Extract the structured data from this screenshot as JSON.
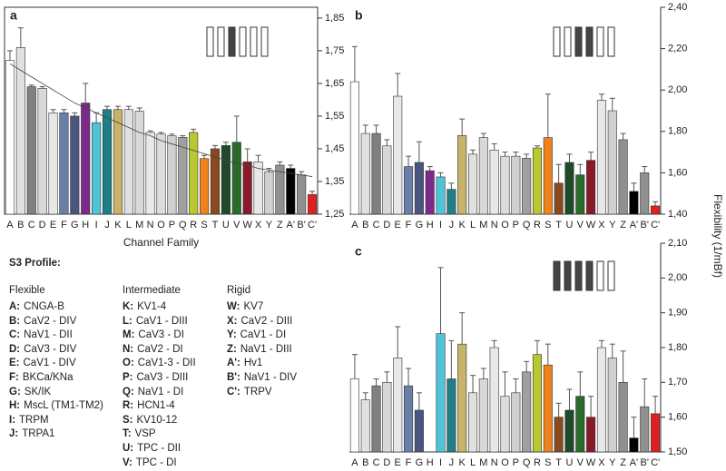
{
  "chart_data": [
    {
      "type": "bar",
      "title": "a",
      "xlabel": "Channel Family",
      "categories": [
        "A",
        "B",
        "C",
        "D",
        "E",
        "F",
        "G",
        "H",
        "I",
        "J",
        "K",
        "L",
        "M",
        "N",
        "O",
        "P",
        "Q",
        "R",
        "S",
        "T",
        "U",
        "V",
        "W",
        "X",
        "Y",
        "Z",
        "A'",
        "B'",
        "C'"
      ],
      "values": [
        1.72,
        1.76,
        1.64,
        1.635,
        1.56,
        1.56,
        1.55,
        1.59,
        1.53,
        1.57,
        1.57,
        1.57,
        1.565,
        1.5,
        1.495,
        1.49,
        1.485,
        1.5,
        1.42,
        1.45,
        1.46,
        1.47,
        1.41,
        1.41,
        1.38,
        1.4,
        1.39,
        1.37,
        1.31
      ],
      "errors": [
        0.03,
        0.06,
        0.005,
        0.005,
        0.01,
        0.01,
        0.01,
        0.06,
        0.03,
        0.01,
        0.01,
        0.01,
        0.01,
        0.005,
        0.005,
        0.005,
        0.005,
        0.01,
        0.01,
        0.01,
        0.01,
        0.08,
        0.04,
        0.02,
        0.01,
        0.01,
        0.01,
        0.01,
        0.01
      ],
      "trend": [
        1.71,
        1.69,
        1.67,
        1.65,
        1.63,
        1.61,
        1.59,
        1.575,
        1.56,
        1.545,
        1.53,
        1.515,
        1.5,
        1.49,
        1.475,
        1.465,
        1.455,
        1.445,
        1.435,
        1.425,
        1.415,
        1.405,
        1.4,
        1.39,
        1.385,
        1.38,
        1.375,
        1.37,
        1.365
      ],
      "colors": [
        "#ffffff",
        "#e0e0e0",
        "#808080",
        "#d8d8d8",
        "#e8e8e8",
        "#6a7fa8",
        "#4a5580",
        "#7b2a8a",
        "#4fc3d8",
        "#1f7f86",
        "#c8b36a",
        "#e0e0e0",
        "#d8d8d8",
        "#e8e8e8",
        "#dcdcdc",
        "#d0d0d0",
        "#a0a0a0",
        "#b8c830",
        "#f0821e",
        "#8a4a1e",
        "#1e4a2a",
        "#2a6a2a",
        "#8a1a2a",
        "#e8e8e8",
        "#d0d0d0",
        "#909090",
        "#000000",
        "#909090",
        "#e02020"
      ],
      "ylim": [
        1.25,
        1.883
      ],
      "yticks": [
        {
          "value": 1.25,
          "label": "1,25"
        },
        {
          "value": 1.35,
          "label": "1,35"
        },
        {
          "value": 1.45,
          "label": "1,45"
        },
        {
          "value": 1.55,
          "label": "1,55"
        },
        {
          "value": 1.65,
          "label": "1,65"
        },
        {
          "value": 1.75,
          "label": "1,75"
        },
        {
          "value": 1.85,
          "label": "1,85"
        }
      ]
    },
    {
      "type": "bar",
      "title": "b",
      "ylabel": "Flexibility (1/mBf)",
      "categories": [
        "A",
        "B",
        "C",
        "D",
        "E",
        "F",
        "G",
        "H",
        "I",
        "J",
        "K",
        "L",
        "M",
        "N",
        "O",
        "P",
        "Q",
        "R",
        "S",
        "T",
        "U",
        "V",
        "W",
        "X",
        "Y",
        "Z",
        "A'",
        "B'",
        "C'"
      ],
      "values": [
        2.04,
        1.79,
        1.79,
        1.73,
        1.97,
        1.63,
        1.65,
        1.61,
        1.58,
        1.52,
        1.78,
        1.69,
        1.77,
        1.71,
        1.68,
        1.68,
        1.67,
        1.72,
        1.77,
        1.55,
        1.65,
        1.59,
        1.66,
        1.95,
        1.9,
        1.76,
        1.51,
        1.6,
        1.44
      ],
      "errors": [
        0.17,
        0.04,
        0.04,
        0.03,
        0.11,
        0.05,
        0.1,
        0.02,
        0.02,
        0.03,
        0.08,
        0.02,
        0.02,
        0.03,
        0.02,
        0.02,
        0.02,
        0.01,
        0.21,
        0.09,
        0.04,
        0.05,
        0.04,
        0.03,
        0.06,
        0.03,
        0.04,
        0.03,
        0.02
      ],
      "colors": [
        "#ffffff",
        "#e0e0e0",
        "#808080",
        "#d8d8d8",
        "#e8e8e8",
        "#6a7fa8",
        "#4a5580",
        "#7b2a8a",
        "#4fc3d8",
        "#1f7f86",
        "#c8b36a",
        "#e0e0e0",
        "#d8d8d8",
        "#e8e8e8",
        "#dcdcdc",
        "#d0d0d0",
        "#a0a0a0",
        "#b8c830",
        "#f0821e",
        "#8a4a1e",
        "#1e4a2a",
        "#2a6a2a",
        "#8a1a2a",
        "#e8e8e8",
        "#d0d0d0",
        "#909090",
        "#000000",
        "#909090",
        "#e02020"
      ],
      "ylim": [
        1.4,
        2.4
      ],
      "yticks": [
        {
          "value": 1.4,
          "label": "1,40"
        },
        {
          "value": 1.6,
          "label": "1,60"
        },
        {
          "value": 1.8,
          "label": "1,80"
        },
        {
          "value": 2.0,
          "label": "2,00"
        },
        {
          "value": 2.2,
          "label": "2,20"
        },
        {
          "value": 2.4,
          "label": "2,40"
        }
      ]
    },
    {
      "type": "bar",
      "title": "c",
      "categories": [
        "A",
        "B",
        "C",
        "D",
        "E",
        "F",
        "G",
        "H",
        "I",
        "J",
        "K",
        "L",
        "M",
        "N",
        "O",
        "P",
        "Q",
        "R",
        "S",
        "T",
        "U",
        "V",
        "W",
        "X",
        "Y",
        "Z",
        "A'",
        "B'",
        "C'"
      ],
      "values": [
        1.71,
        1.65,
        1.69,
        1.7,
        1.77,
        1.69,
        1.62,
        null,
        1.84,
        1.71,
        1.81,
        1.67,
        1.71,
        1.8,
        1.66,
        1.67,
        1.73,
        1.78,
        1.75,
        1.6,
        1.62,
        1.66,
        1.6,
        1.8,
        1.77,
        1.7,
        1.54,
        1.63,
        1.61
      ],
      "errors": [
        0.07,
        0.02,
        0.02,
        0.03,
        0.09,
        0.05,
        0.05,
        null,
        0.19,
        0.11,
        0.09,
        0.05,
        0.03,
        0.02,
        0.07,
        0.04,
        0.03,
        0.04,
        0.06,
        0.04,
        0.06,
        0.07,
        0.06,
        0.02,
        0.04,
        0.09,
        0.06,
        0.08,
        0.05
      ],
      "colors": [
        "#ffffff",
        "#e0e0e0",
        "#808080",
        "#d8d8d8",
        "#e8e8e8",
        "#6a7fa8",
        "#4a5580",
        "#7b2a8a",
        "#4fc3d8",
        "#1f7f86",
        "#c8b36a",
        "#e0e0e0",
        "#d8d8d8",
        "#e8e8e8",
        "#dcdcdc",
        "#d0d0d0",
        "#a0a0a0",
        "#b8c830",
        "#f0821e",
        "#8a4a1e",
        "#1e4a2a",
        "#2a6a2a",
        "#8a1a2a",
        "#e8e8e8",
        "#d0d0d0",
        "#909090",
        "#000000",
        "#909090",
        "#e02020"
      ],
      "ylim": [
        1.5,
        2.1
      ],
      "yticks": [
        {
          "value": 1.5,
          "label": "1,50"
        },
        {
          "value": 1.6,
          "label": "1,60"
        },
        {
          "value": 1.7,
          "label": "1,70"
        },
        {
          "value": 1.8,
          "label": "1,80"
        },
        {
          "value": 1.9,
          "label": "1,90"
        },
        {
          "value": 2.0,
          "label": "2,00"
        },
        {
          "value": 2.1,
          "label": "2,10"
        }
      ]
    }
  ],
  "legend": {
    "title": "S3 Profile:",
    "groups": [
      {
        "name": "Flexible",
        "items": [
          {
            "key": "A:",
            "label": "CNGA-B"
          },
          {
            "key": "B:",
            "label": "CaV2 - DIV"
          },
          {
            "key": "C:",
            "label": "NaV1 - DII"
          },
          {
            "key": "D:",
            "label": "CaV3 - DIV"
          },
          {
            "key": "E:",
            "label": "CaV1 - DIV"
          },
          {
            "key": "F:",
            "label": "BKCa/KNa"
          },
          {
            "key": "G:",
            "label": "SK/IK"
          },
          {
            "key": "H:",
            "label": "MscL (TM1-TM2)"
          },
          {
            "key": "I:",
            "label": "TRPM"
          },
          {
            "key": "J:",
            "label": "TRPA1"
          }
        ]
      },
      {
        "name": "Intermediate",
        "items": [
          {
            "key": "K:",
            "label": "KV1-4"
          },
          {
            "key": "L:",
            "label": "CaV1 - DIII"
          },
          {
            "key": "M:",
            "label": "CaV3 - DI"
          },
          {
            "key": "N:",
            "label": "CaV2 - DI"
          },
          {
            "key": "O:",
            "label": "CaV1-3 - DII"
          },
          {
            "key": "P:",
            "label": "CaV3 - DIII"
          },
          {
            "key": "Q:",
            "label": "NaV1 - DI"
          },
          {
            "key": "R:",
            "label": "HCN1-4"
          },
          {
            "key": "S:",
            "label": "KV10-12"
          },
          {
            "key": "T:",
            "label": "VSP"
          },
          {
            "key": "U:",
            "label": "TPC - DII"
          },
          {
            "key": "V:",
            "label": "TPC - DI"
          }
        ]
      },
      {
        "name": "Rigid",
        "items": [
          {
            "key": "W:",
            "label": "KV7"
          },
          {
            "key": "X:",
            "label": "CaV2 - DIII"
          },
          {
            "key": "Y:",
            "label": "CaV1 - DI"
          },
          {
            "key": "Z:",
            "label": "NaV1 - DIII"
          },
          {
            "key": "A':",
            "label": "Hv1"
          },
          {
            "key": "B':",
            "label": "NaV1 - DIV"
          },
          {
            "key": "C':",
            "label": "TRPV"
          }
        ]
      }
    ]
  }
}
